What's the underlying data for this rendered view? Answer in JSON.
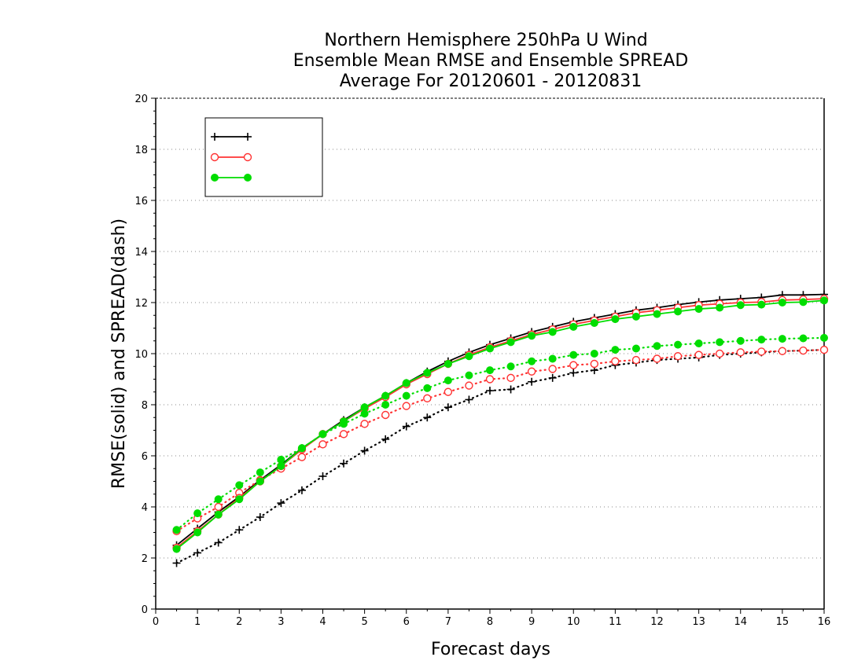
{
  "chart_data": {
    "type": "line",
    "title": [
      "Northern Hemisphere 250hPa U Wind",
      "Ensemble Mean RMSE and Ensemble SPREAD",
      "Average For 20120601 - 20120831"
    ],
    "xlabel": "Forecast days",
    "ylabel": "RMSE(solid) and SPREAD(dash)",
    "xlim": [
      0,
      16
    ],
    "ylim": [
      0,
      20
    ],
    "xticks": [
      0,
      1,
      2,
      3,
      4,
      5,
      6,
      7,
      8,
      9,
      10,
      11,
      12,
      13,
      14,
      15,
      16
    ],
    "yticks": [
      0,
      2,
      4,
      6,
      8,
      10,
      12,
      14,
      16,
      18,
      20
    ],
    "grid": "horizontal dotted",
    "legend_position": "top-left",
    "x": [
      0.5,
      1,
      1.5,
      2,
      2.5,
      3,
      3.5,
      4,
      4.5,
      5,
      5.5,
      6,
      6.5,
      7,
      7.5,
      8,
      8.5,
      9,
      9.5,
      10,
      10.5,
      11,
      11.5,
      12,
      12.5,
      13,
      13.5,
      14,
      14.5,
      15,
      15.5,
      16
    ],
    "series": [
      {
        "name": "",
        "color": "#000000",
        "marker": "plus",
        "rmse": [
          2.5,
          3.15,
          3.8,
          4.4,
          5.05,
          5.65,
          6.3,
          6.85,
          7.4,
          7.9,
          8.35,
          8.85,
          9.3,
          9.7,
          10.05,
          10.35,
          10.6,
          10.85,
          11.05,
          11.25,
          11.4,
          11.55,
          11.7,
          11.8,
          11.92,
          12.02,
          12.1,
          12.15,
          12.2,
          12.3,
          12.3,
          12.32
        ],
        "spread": [
          1.8,
          2.2,
          2.6,
          3.1,
          3.6,
          4.15,
          4.65,
          5.2,
          5.7,
          6.2,
          6.65,
          7.15,
          7.5,
          7.9,
          8.2,
          8.55,
          8.6,
          8.9,
          9.05,
          9.25,
          9.35,
          9.55,
          9.65,
          9.75,
          9.8,
          9.85,
          9.95,
          10.0,
          10.05,
          10.1,
          10.12,
          10.15
        ]
      },
      {
        "name": "",
        "color": "#ff3333",
        "marker": "open-circle",
        "rmse": [
          2.4,
          3.05,
          3.7,
          4.35,
          5.0,
          5.6,
          6.25,
          6.85,
          7.35,
          7.85,
          8.3,
          8.8,
          9.2,
          9.6,
          9.95,
          10.25,
          10.5,
          10.75,
          10.95,
          11.15,
          11.3,
          11.45,
          11.6,
          11.7,
          11.8,
          11.9,
          11.95,
          12.0,
          12.02,
          12.1,
          12.12,
          12.15
        ],
        "spread": [
          3.05,
          3.55,
          4.0,
          4.55,
          5.05,
          5.5,
          5.95,
          6.45,
          6.85,
          7.25,
          7.6,
          7.95,
          8.25,
          8.5,
          8.75,
          9.0,
          9.05,
          9.3,
          9.4,
          9.55,
          9.6,
          9.7,
          9.75,
          9.8,
          9.9,
          9.95,
          10.0,
          10.05,
          10.08,
          10.1,
          10.12,
          10.15
        ]
      },
      {
        "name": "",
        "color": "#00dd00",
        "marker": "filled-circle",
        "rmse": [
          2.35,
          3.0,
          3.7,
          4.3,
          5.0,
          5.6,
          6.3,
          6.85,
          7.35,
          7.9,
          8.35,
          8.85,
          9.25,
          9.6,
          9.9,
          10.2,
          10.45,
          10.7,
          10.85,
          11.05,
          11.2,
          11.35,
          11.45,
          11.55,
          11.65,
          11.75,
          11.8,
          11.9,
          11.92,
          12.0,
          12.02,
          12.08
        ],
        "spread": [
          3.1,
          3.75,
          4.3,
          4.85,
          5.35,
          5.85,
          6.3,
          6.85,
          7.25,
          7.65,
          8.0,
          8.35,
          8.65,
          8.95,
          9.15,
          9.35,
          9.5,
          9.7,
          9.8,
          9.95,
          10.0,
          10.15,
          10.2,
          10.3,
          10.35,
          10.4,
          10.45,
          10.5,
          10.55,
          10.58,
          10.6,
          10.62
        ]
      }
    ]
  }
}
